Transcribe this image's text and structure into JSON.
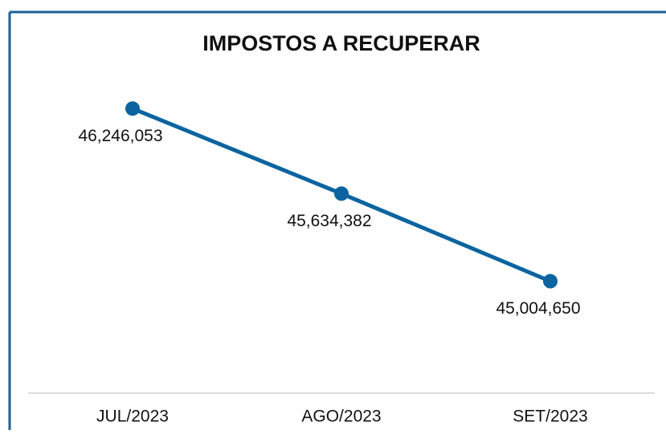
{
  "chart_data": {
    "type": "line",
    "title": "IMPOSTOS A RECUPERAR",
    "categories": [
      "JUL/2023",
      "AGO/2023",
      "SET/2023"
    ],
    "series": [
      {
        "name": null,
        "color": "#0b64a0",
        "values": [
          46246053,
          45634382,
          45004650
        ],
        "value_labels": [
          "46,246,053",
          "45,634,382",
          "45,004,650"
        ]
      }
    ],
    "ylim": [
      44200000,
      46450000
    ]
  }
}
